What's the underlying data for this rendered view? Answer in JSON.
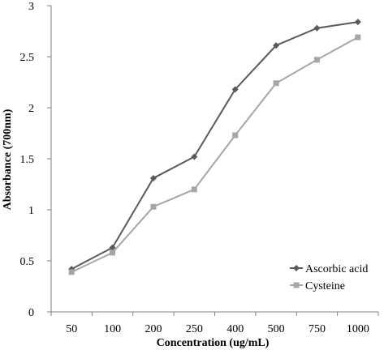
{
  "chart_data": {
    "type": "line",
    "title": "",
    "xlabel": "Concentration (ug/mL)",
    "ylabel": "Absorbance (700nm)",
    "categories": [
      "50",
      "100",
      "200",
      "250",
      "400",
      "500",
      "750",
      "1000"
    ],
    "ylim": [
      0,
      3
    ],
    "yticks": [
      "0",
      "0.5",
      "1",
      "1.5",
      "2",
      "2.5",
      "3"
    ],
    "grid": false,
    "legend_position": "bottom-right",
    "series": [
      {
        "name": "Ascorbic acid",
        "marker": "diamond",
        "color": "#5a5a5a",
        "values": [
          0.42,
          0.63,
          1.31,
          1.52,
          2.18,
          2.61,
          2.78,
          2.84
        ]
      },
      {
        "name": "Cysteine",
        "marker": "square",
        "color": "#a6a6a6",
        "values": [
          0.39,
          0.58,
          1.03,
          1.2,
          1.73,
          2.24,
          2.47,
          2.69
        ]
      }
    ]
  }
}
